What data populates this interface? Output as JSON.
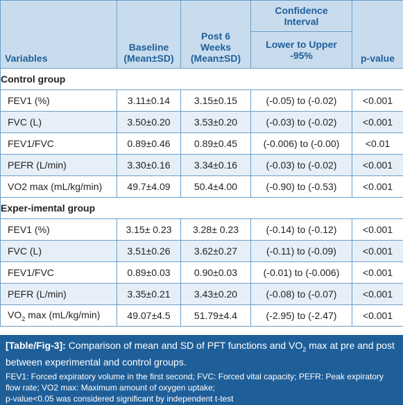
{
  "table": {
    "headers": {
      "variables": "Variables",
      "baseline_line1": "Baseline",
      "baseline_line2": "(Mean±SD)",
      "post_line1": "Post 6",
      "post_line2": "Weeks",
      "post_line3": "(Mean±SD)",
      "ci_line1": "Confidence",
      "ci_line2": "Interval",
      "ci_sub_line1": "Lower to Upper",
      "ci_sub_line2": "-95%",
      "pvalue": "p-value"
    },
    "groups": [
      {
        "title": "Control group",
        "rows": [
          {
            "variable": "FEV1 (%)",
            "baseline": "3.11±0.14",
            "post": "3.15±0.15",
            "ci": "(-0.05) to (-0.02)",
            "p": "<0.001"
          },
          {
            "variable": "FVC (L)",
            "baseline": "3.50±0.20",
            "post": "3.53±0.20",
            "ci": "(-0.03) to (-0.02)",
            "p": "<0.001"
          },
          {
            "variable": "FEV1/FVC",
            "baseline": "0.89±0.46",
            "post": "0.89±0.45",
            "ci": "(-0.006) to (-0.00)",
            "p": "<0.01"
          },
          {
            "variable": "PEFR (L/min)",
            "baseline": "3.30±0.16",
            "post": "3.34±0.16",
            "ci": "(-0.03) to (-0.02)",
            "p": "<0.001"
          },
          {
            "variable": "VO2 max (mL/kg/min)",
            "baseline": "49.7±4.09",
            "post": "50.4±4.00",
            "ci": "(-0.90) to (-0.53)",
            "p": "<0.001"
          }
        ]
      },
      {
        "title": "Exper-imental group",
        "rows": [
          {
            "variable": "FEV1 (%)",
            "baseline": "3.15± 0.23",
            "post": "3.28± 0.23",
            "ci": "(-0.14) to (-0.12)",
            "p": "<0.001"
          },
          {
            "variable": "FVC (L)",
            "baseline": "3.51±0.26",
            "post": "3.62±0.27",
            "ci": "(-0.11) to (-0.09)",
            "p": "<0.001"
          },
          {
            "variable": "FEV1/FVC",
            "baseline": "0.89±0.03",
            "post": "0.90±0.03",
            "ci": "(-0.01) to (-0.006)",
            "p": "<0.001"
          },
          {
            "variable": "PEFR (L/min)",
            "baseline": "3.35±0.21",
            "post": "3.43±0.20",
            "ci": "(-0.08) to (-0.07)",
            "p": "<0.001"
          },
          {
            "variable_pre": "VO",
            "variable_sub": "2",
            "variable_post": " max (mL/kg/min)",
            "baseline": "49.07±4.5",
            "post": "51.79±4.4",
            "ci": "(-2.95) to (-2.47)",
            "p": "<0.001"
          }
        ]
      }
    ]
  },
  "caption": {
    "label": "[Table/Fig-3]:",
    "text_pre": " Comparison of mean and SD of PFT functions and VO",
    "text_sub": "2",
    "text_post": " max at pre and post between experimental and control groups.",
    "note_1": "FEV1: Forced expiratory volume in the first second; FVC: Forced vital capacity; PEFR: Peak expiratory flow rate; VO2 max: Maximum amount of oxygen uptake;",
    "note_2": "p-value<0.05 was considered significant by independent t-test"
  },
  "colors": {
    "header_bg": "#c9dcee",
    "header_text": "#1f5f99",
    "row_alt_bg": "#e6eff8",
    "border": "#6a9ec8",
    "caption_bg": "#1f5f99"
  }
}
